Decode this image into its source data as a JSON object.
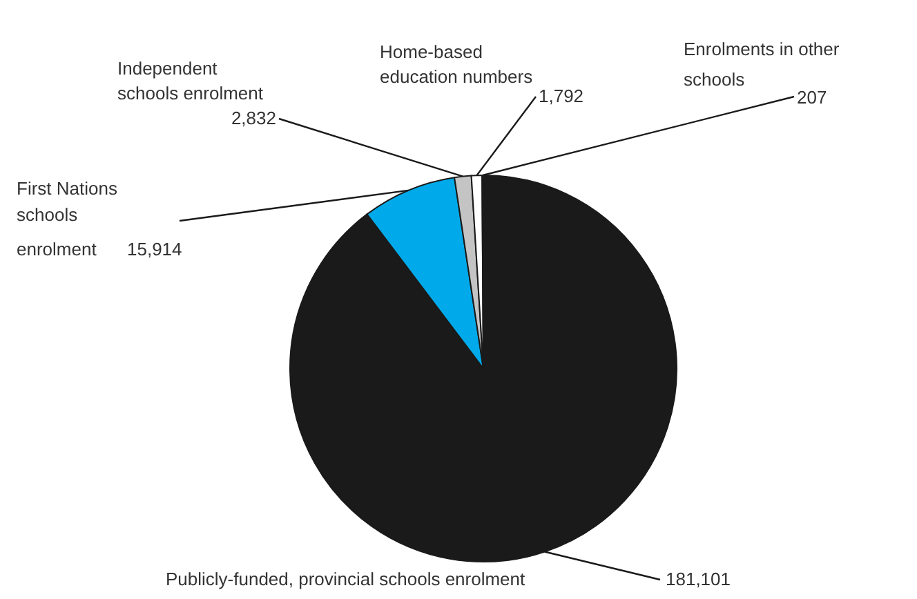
{
  "chart_data": {
    "type": "pie",
    "categories": [
      "Publicly-funded, provincial schools enrolment",
      "First Nations schools enrolment",
      "Independent schools enrolment",
      "Home-based education numbers",
      "Enrolments in other schools"
    ],
    "values": [
      181101,
      15914,
      2832,
      1792,
      207
    ],
    "value_labels": [
      "181,101",
      "15,914",
      "2,832",
      "1,792",
      "207"
    ],
    "colors": [
      "#1a1a1a",
      "#00aaea",
      "#c4c4c4",
      "#ffffff",
      "#1a1a1a"
    ]
  }
}
